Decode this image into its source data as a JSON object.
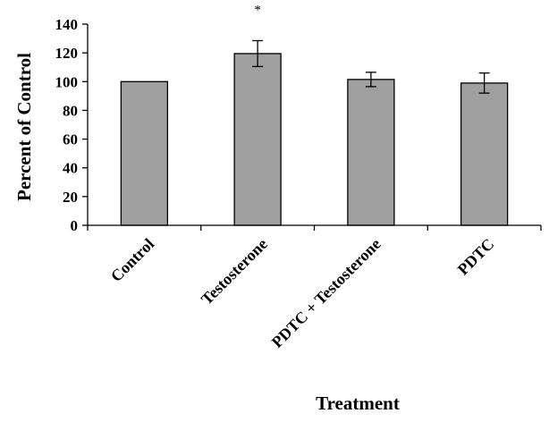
{
  "chart_data": {
    "type": "bar",
    "categories": [
      "Control",
      "Testosterone",
      "PDTC + Testosterone",
      "PDTC"
    ],
    "values": [
      100,
      119.5,
      101.5,
      99
    ],
    "error": [
      0,
      9,
      5,
      7
    ],
    "annotations": [
      "",
      "*",
      "",
      ""
    ],
    "xlabel": "Treatment",
    "ylabel": "Percent of Control",
    "ylim": [
      0,
      140
    ],
    "yticks": [
      0,
      20,
      40,
      60,
      80,
      100,
      120,
      140
    ],
    "grid": false,
    "legend": "none",
    "bar_color": "#a0a0a0",
    "bar_edge_color": "#000000"
  }
}
